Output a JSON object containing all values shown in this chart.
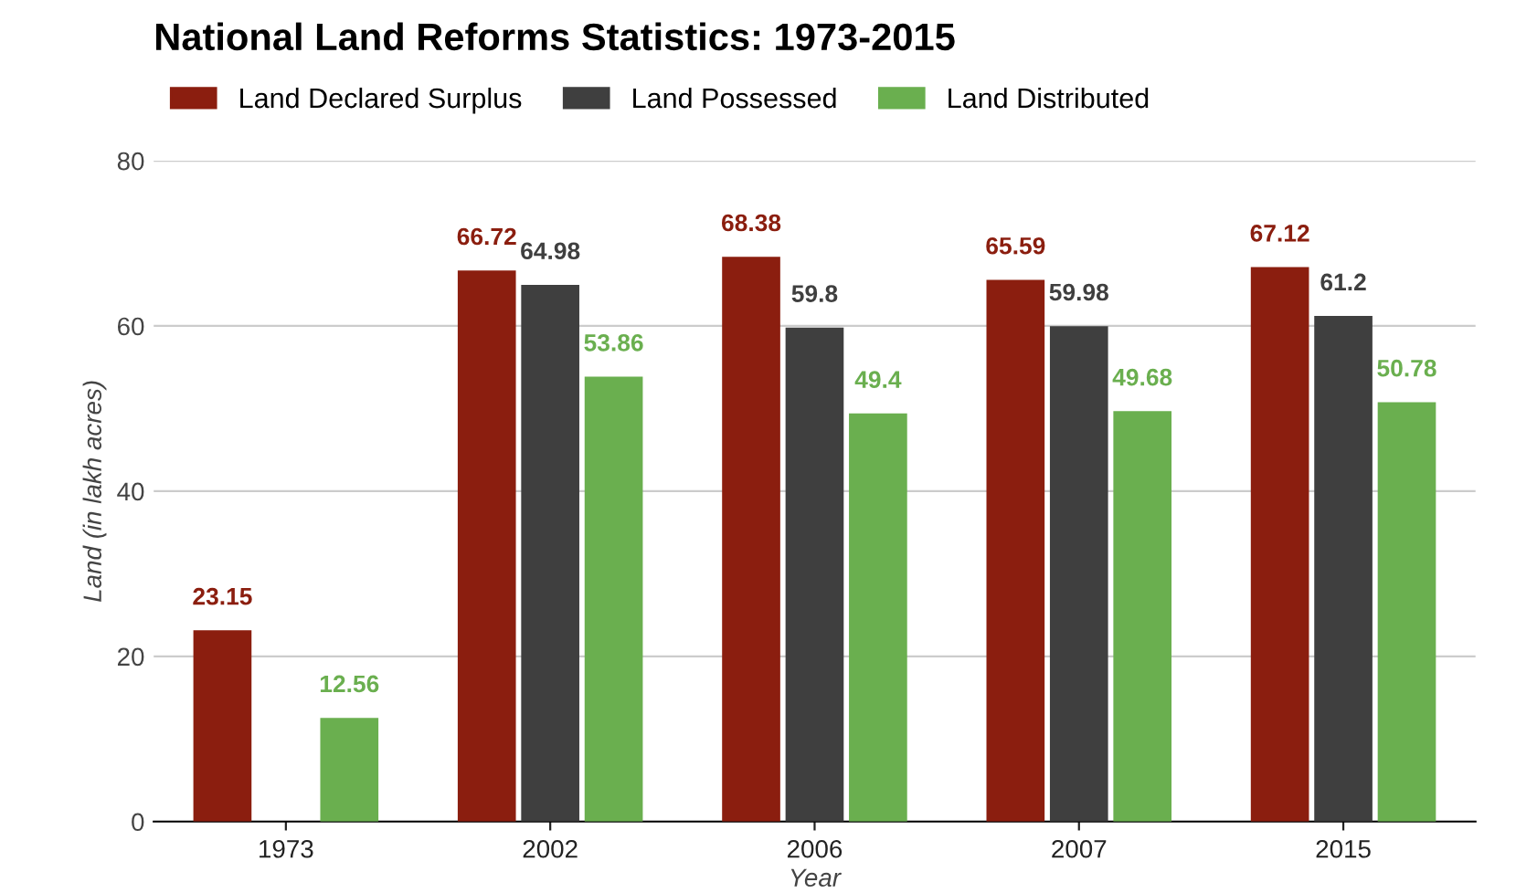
{
  "chart_data": {
    "type": "bar",
    "title": "National Land Reforms Statistics: 1973-2015",
    "xlabel": "Year",
    "ylabel": "Land (in lakh acres)",
    "categories": [
      "1973",
      "2002",
      "2006",
      "2007",
      "2015"
    ],
    "series": [
      {
        "name": "Land Declared Surplus",
        "color": "#8b1e0f",
        "values": [
          23.15,
          66.72,
          68.38,
          65.59,
          67.12
        ]
      },
      {
        "name": "Land Possessed",
        "color": "#3f3f3f",
        "values": [
          null,
          64.98,
          59.8,
          59.98,
          61.2
        ]
      },
      {
        "name": "Land Distributed",
        "color": "#6aaf4f",
        "values": [
          12.56,
          53.86,
          49.4,
          49.68,
          50.78
        ]
      }
    ],
    "ylim": [
      0,
      80
    ],
    "yticks": [
      0,
      20,
      40,
      60,
      80
    ],
    "grid": "y",
    "legend": "top left",
    "data_labels": true
  }
}
